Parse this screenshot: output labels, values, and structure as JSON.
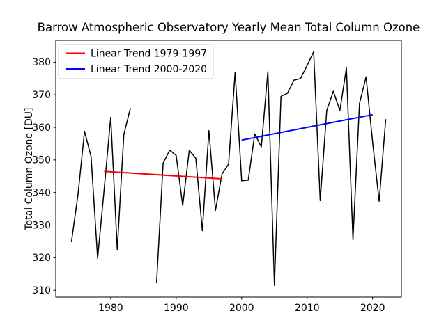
{
  "figure": {
    "background": "#ffffff"
  },
  "chart_data": {
    "type": "line",
    "title": "Barrow Atmospheric Observatory Yearly Mean Total Column Ozone",
    "xlabel": "",
    "ylabel": "Total Column Ozone [DU]",
    "xlim": [
      1971.6,
      2024.4
    ],
    "ylim": [
      307.9,
      386.7
    ],
    "xticks": [
      1980,
      1990,
      2000,
      2010,
      2020
    ],
    "yticks": [
      310,
      320,
      330,
      340,
      350,
      360,
      370,
      380
    ],
    "grid": false,
    "axis_color": "#000000",
    "series": [
      {
        "name": "yearly-mean-total-column-ozone",
        "color": "#000000",
        "line_width": 1.5,
        "x": [
          1974,
          1975,
          1976,
          1977,
          1978,
          1979,
          1980,
          1981,
          1982,
          1983,
          1984,
          1985,
          1986,
          1987,
          1988,
          1989,
          1990,
          1991,
          1992,
          1993,
          1994,
          1995,
          1996,
          1997,
          1998,
          1999,
          2000,
          2001,
          2002,
          2003,
          2004,
          2005,
          2006,
          2007,
          2008,
          2009,
          2010,
          2011,
          2012,
          2013,
          2014,
          2015,
          2016,
          2017,
          2018,
          2019,
          2020,
          2021,
          2022
        ],
        "y": [
          324.8,
          339.3,
          358.8,
          351.0,
          319.8,
          341.0,
          363.1,
          322.5,
          357.8,
          365.9,
          null,
          null,
          null,
          312.3,
          349.0,
          353.0,
          351.4,
          336.0,
          353.0,
          350.5,
          328.3,
          359.0,
          334.5,
          345.7,
          348.7,
          376.9,
          343.6,
          343.8,
          358.0,
          354.0,
          377.1,
          311.5,
          369.5,
          370.5,
          374.5,
          375.0,
          379.0,
          383.2,
          337.5,
          365.2,
          371.1,
          365.2,
          378.2,
          325.5,
          367.4,
          375.5,
          355.5,
          337.3,
          362.5
        ]
      },
      {
        "name": "linear-trend-1979-1997",
        "color": "#ff0000",
        "line_width": 2,
        "x": [
          1979,
          1997
        ],
        "y": [
          346.5,
          344.2
        ]
      },
      {
        "name": "linear-trend-2000-2020",
        "color": "#0000ff",
        "line_width": 2,
        "x": [
          2000,
          2020
        ],
        "y": [
          356.1,
          363.9
        ]
      }
    ],
    "legend": {
      "position": "upper-left",
      "entries": [
        {
          "label": "Linear Trend 1979-1997",
          "color": "#ff0000"
        },
        {
          "label": "Linear Trend 2000-2020",
          "color": "#0000ff"
        }
      ]
    }
  }
}
